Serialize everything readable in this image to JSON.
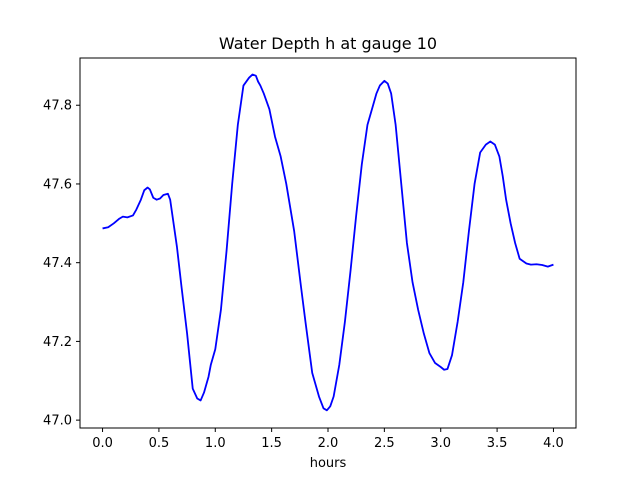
{
  "chart_data": {
    "type": "line",
    "title": "Water Depth h at gauge 10",
    "xlabel": "hours",
    "ylabel": "",
    "xlim": [
      -0.2,
      4.2
    ],
    "ylim": [
      46.98,
      47.92
    ],
    "xticks": [
      0.0,
      0.5,
      1.0,
      1.5,
      2.0,
      2.5,
      3.0,
      3.5,
      4.0
    ],
    "xtick_labels": [
      "0.0",
      "0.5",
      "1.0",
      "1.5",
      "2.0",
      "2.5",
      "3.0",
      "3.5",
      "4.0"
    ],
    "yticks": [
      47.0,
      47.2,
      47.4,
      47.6,
      47.8
    ],
    "ytick_labels": [
      "47.0",
      "47.2",
      "47.4",
      "47.6",
      "47.8"
    ],
    "grid": false,
    "series": [
      {
        "color": "#0000ff",
        "x": [
          0.0,
          0.05,
          0.1,
          0.15,
          0.18,
          0.22,
          0.27,
          0.3,
          0.34,
          0.37,
          0.4,
          0.42,
          0.45,
          0.48,
          0.51,
          0.54,
          0.58,
          0.6,
          0.62,
          0.66,
          0.7,
          0.75,
          0.8,
          0.84,
          0.87,
          0.9,
          0.94,
          0.96,
          1.0,
          1.05,
          1.1,
          1.15,
          1.2,
          1.25,
          1.3,
          1.33,
          1.36,
          1.38,
          1.4,
          1.43,
          1.48,
          1.53,
          1.58,
          1.63,
          1.7,
          1.76,
          1.8,
          1.86,
          1.92,
          1.96,
          1.99,
          2.02,
          2.05,
          2.1,
          2.15,
          2.2,
          2.25,
          2.3,
          2.35,
          2.4,
          2.43,
          2.46,
          2.5,
          2.53,
          2.56,
          2.6,
          2.65,
          2.7,
          2.75,
          2.8,
          2.85,
          2.9,
          2.95,
          3.0,
          3.03,
          3.06,
          3.1,
          3.15,
          3.2,
          3.25,
          3.3,
          3.35,
          3.4,
          3.44,
          3.48,
          3.52,
          3.55,
          3.58,
          3.62,
          3.66,
          3.7,
          3.76,
          3.8,
          3.85,
          3.9,
          3.95,
          4.0
        ],
        "y": [
          47.487,
          47.49,
          47.5,
          47.512,
          47.517,
          47.515,
          47.52,
          47.535,
          47.56,
          47.584,
          47.591,
          47.586,
          47.565,
          47.56,
          47.563,
          47.572,
          47.575,
          47.56,
          47.52,
          47.44,
          47.34,
          47.22,
          47.08,
          47.055,
          47.05,
          47.07,
          47.11,
          47.14,
          47.18,
          47.28,
          47.43,
          47.6,
          47.75,
          47.85,
          47.87,
          47.878,
          47.875,
          47.86,
          47.85,
          47.83,
          47.79,
          47.72,
          47.67,
          47.6,
          47.48,
          47.34,
          47.25,
          47.12,
          47.06,
          47.03,
          47.025,
          47.035,
          47.06,
          47.14,
          47.25,
          47.38,
          47.52,
          47.65,
          47.75,
          47.8,
          47.83,
          47.85,
          47.862,
          47.855,
          47.83,
          47.75,
          47.6,
          47.45,
          47.35,
          47.28,
          47.22,
          47.17,
          47.145,
          47.135,
          47.128,
          47.13,
          47.165,
          47.25,
          47.35,
          47.48,
          47.6,
          47.68,
          47.7,
          47.708,
          47.7,
          47.67,
          47.62,
          47.56,
          47.5,
          47.45,
          47.41,
          47.398,
          47.395,
          47.396,
          47.394,
          47.39,
          47.395
        ]
      }
    ]
  }
}
